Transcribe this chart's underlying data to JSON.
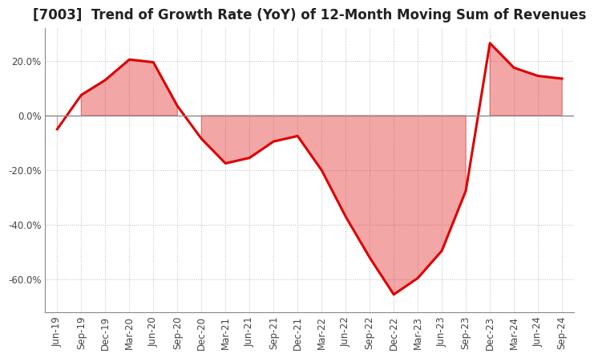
{
  "title": "[7003]  Trend of Growth Rate (YoY) of 12-Month Moving Sum of Revenues",
  "line_color": "#dd0000",
  "fill_color": "#dd0000",
  "background_color": "#ffffff",
  "plot_bg_color": "#ffffff",
  "grid_color": "#bbbbbb",
  "zero_line_color": "#888888",
  "spine_color": "#888888",
  "tick_label_color": "#444444",
  "title_color": "#222222",
  "x_labels": [
    "Jun-19",
    "Sep-19",
    "Dec-19",
    "Mar-20",
    "Jun-20",
    "Sep-20",
    "Dec-20",
    "Mar-21",
    "Jun-21",
    "Sep-21",
    "Dec-21",
    "Mar-22",
    "Jun-22",
    "Sep-22",
    "Dec-22",
    "Mar-23",
    "Jun-23",
    "Sep-23",
    "Dec-23",
    "Mar-24",
    "Jun-24",
    "Sep-24"
  ],
  "y_values": [
    -0.05,
    0.075,
    0.13,
    0.205,
    0.195,
    0.035,
    -0.085,
    -0.175,
    -0.155,
    -0.095,
    -0.075,
    -0.2,
    -0.37,
    -0.52,
    -0.655,
    -0.595,
    -0.495,
    -0.275,
    0.265,
    0.175,
    0.145,
    0.135
  ],
  "ylim": [
    -0.72,
    0.32
  ],
  "yticks": [
    -0.6,
    -0.4,
    -0.2,
    0.0,
    0.2
  ],
  "title_fontsize": 12,
  "axis_fontsize": 8.5,
  "line_width": 2.2,
  "fill_alpha": 0.35
}
